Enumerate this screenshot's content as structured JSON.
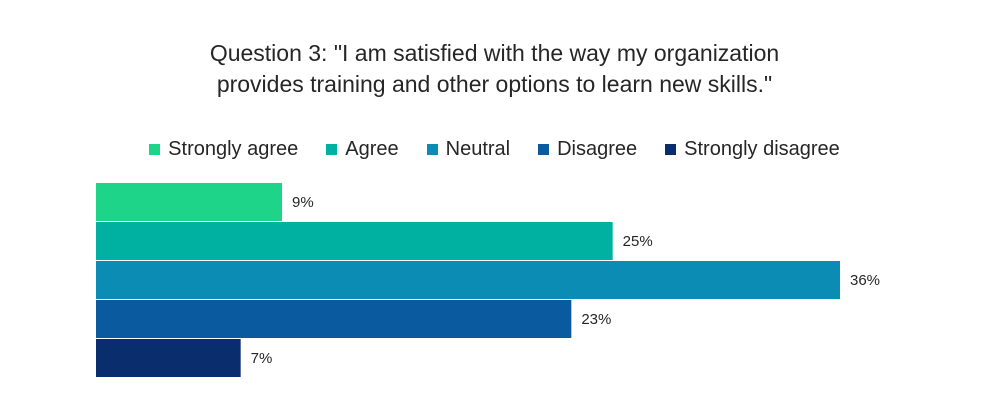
{
  "chart_data": {
    "type": "bar",
    "orientation": "horizontal",
    "title": "Question 3: \"I am satisfied with the way my organization provides training and other options to learn new skills.\"",
    "title_lines": [
      "Question 3: \"I am satisfied with the way my organization",
      "provides training and other options to learn new skills.\""
    ],
    "categories": [
      "Strongly agree",
      "Agree",
      "Neutral",
      "Disagree",
      "Strongly disagree"
    ],
    "values": [
      9,
      25,
      36,
      23,
      7
    ],
    "value_labels": [
      "9%",
      "25%",
      "36%",
      "23%",
      "7%"
    ],
    "unit": "%",
    "colors": [
      "#1ed488",
      "#00b0a0",
      "#0a8cb4",
      "#0a5aa0",
      "#0a2d6e"
    ],
    "xlim": [
      0,
      36
    ],
    "legend_position": "top-center",
    "grid": false,
    "xlabel": "",
    "ylabel": ""
  }
}
